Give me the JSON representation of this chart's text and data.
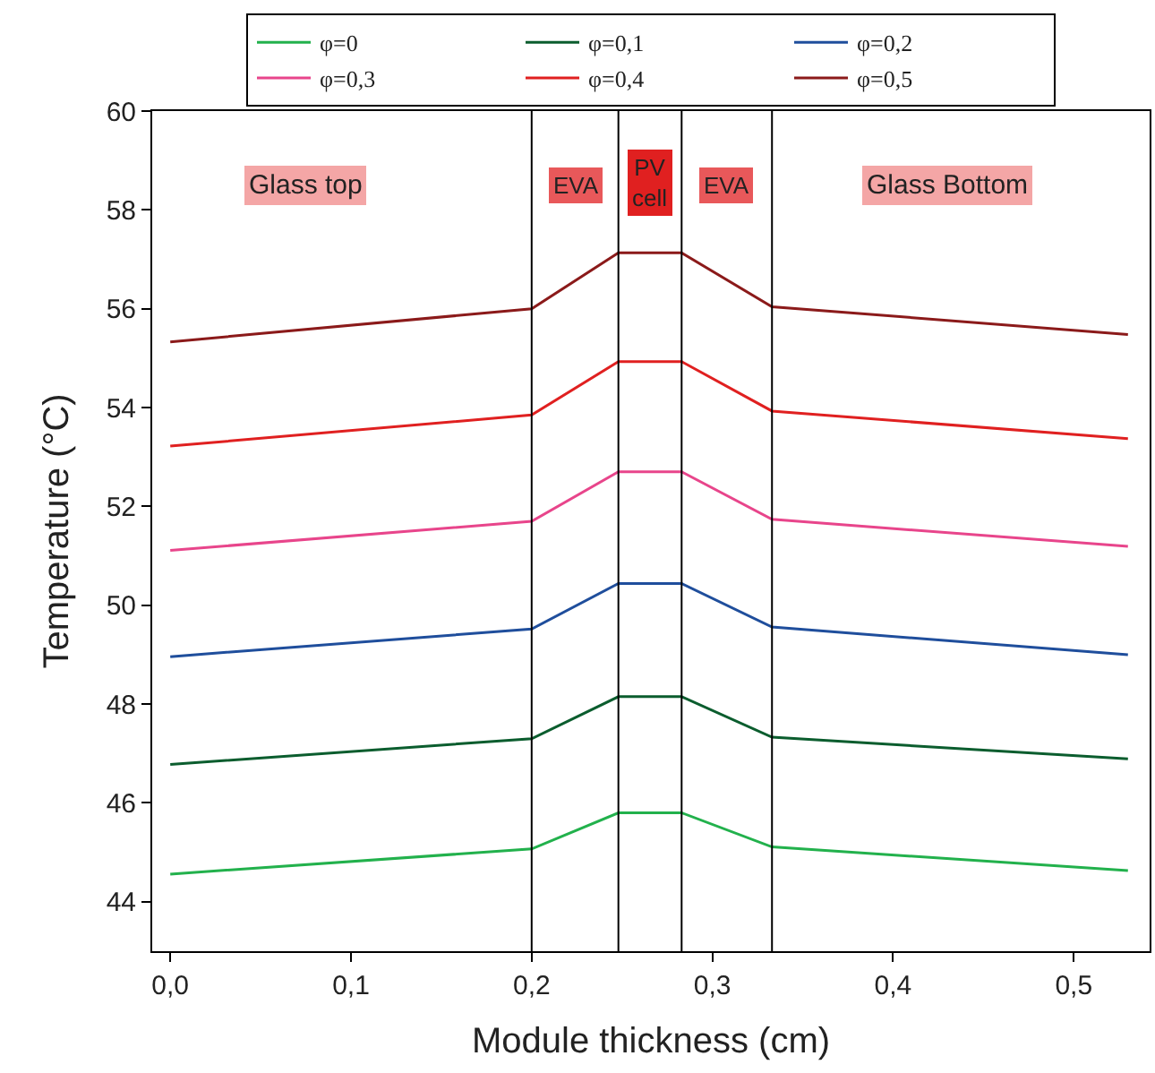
{
  "chart_data": {
    "type": "line",
    "xlabel": "Module thickness (cm)",
    "ylabel": "Temperature (°C)",
    "x": [
      0,
      0.2,
      0.248,
      0.283,
      0.333,
      0.53
    ],
    "series": [
      {
        "name": "φ=0",
        "color": "#22b14c",
        "values": [
          44.56,
          45.07,
          45.8,
          45.8,
          45.11,
          44.63
        ]
      },
      {
        "name": "φ=0,1",
        "color": "#0b5d2e",
        "values": [
          46.78,
          47.3,
          48.15,
          48.15,
          47.33,
          46.89
        ]
      },
      {
        "name": "φ=0,2",
        "color": "#1f4e9c",
        "values": [
          48.96,
          49.52,
          50.44,
          50.44,
          49.56,
          49.0
        ]
      },
      {
        "name": "φ=0,3",
        "color": "#e8458b",
        "values": [
          51.11,
          51.7,
          52.7,
          52.7,
          51.74,
          51.19
        ]
      },
      {
        "name": "φ=0,4",
        "color": "#e02020",
        "values": [
          53.22,
          53.85,
          54.93,
          54.93,
          53.93,
          53.37
        ]
      },
      {
        "name": "φ=0,5",
        "color": "#8b1a1a",
        "values": [
          55.33,
          56.0,
          57.13,
          57.13,
          56.04,
          55.48
        ]
      }
    ],
    "xlim": [
      -0.01,
      0.542
    ],
    "ylim": [
      43,
      60
    ],
    "xticks": [
      {
        "value": 0,
        "label": "0,0"
      },
      {
        "value": 0.1,
        "label": "0,1"
      },
      {
        "value": 0.2,
        "label": "0,2"
      },
      {
        "value": 0.3,
        "label": "0,3"
      },
      {
        "value": 0.4,
        "label": "0,4"
      },
      {
        "value": 0.5,
        "label": "0,5"
      }
    ],
    "yticks": [
      44,
      46,
      48,
      50,
      52,
      54,
      56,
      58,
      60
    ],
    "ref_lines": [
      {
        "axis": "x",
        "value": 0.2,
        "color": "#000000"
      },
      {
        "axis": "x",
        "value": 0.248,
        "color": "#000000"
      },
      {
        "axis": "x",
        "value": 0.283,
        "color": "#000000"
      },
      {
        "axis": "x",
        "value": 0.333,
        "color": "#000000"
      }
    ],
    "annotations": [
      "Glass top",
      "EVA",
      "PV\ncell",
      "EVA",
      "Glass Bottom"
    ],
    "legend": "top",
    "marker": "none",
    "line_style": "solid"
  }
}
